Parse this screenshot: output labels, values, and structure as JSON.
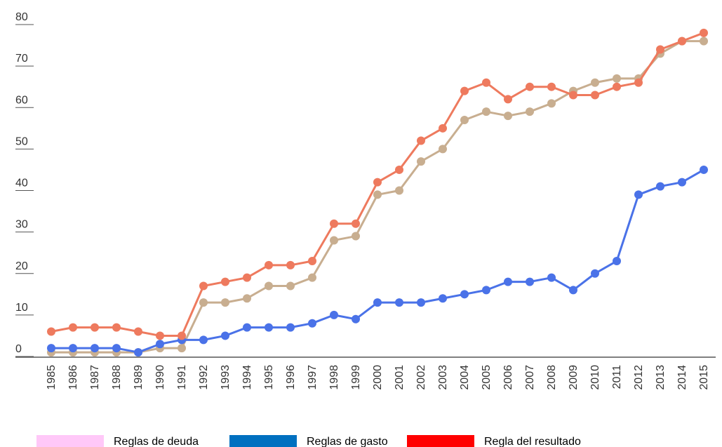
{
  "chart_data": {
    "type": "line",
    "categories": [
      "1985",
      "1986",
      "1987",
      "1988",
      "1989",
      "1990",
      "1991",
      "1992",
      "1993",
      "1994",
      "1995",
      "1996",
      "1997",
      "1998",
      "1999",
      "2000",
      "2001",
      "2002",
      "2003",
      "2004",
      "2005",
      "2006",
      "2007",
      "2008",
      "2009",
      "2010",
      "2011",
      "2012",
      "2013",
      "2014",
      "2015"
    ],
    "series": [
      {
        "name": "Reglas de deuda",
        "color": "#c8ae90",
        "legend_color": "#ffc8f8",
        "values": [
          1,
          1,
          1,
          1,
          1,
          2,
          2,
          13,
          13,
          14,
          17,
          17,
          19,
          28,
          29,
          39,
          40,
          47,
          50,
          57,
          59,
          58,
          59,
          61,
          64,
          66,
          67,
          67,
          73,
          76,
          76
        ]
      },
      {
        "name": "Reglas de gasto",
        "color": "#4a72e8",
        "legend_color": "#0070c0",
        "values": [
          2,
          2,
          2,
          2,
          1,
          3,
          4,
          4,
          5,
          7,
          7,
          7,
          8,
          10,
          9,
          13,
          13,
          13,
          14,
          15,
          16,
          18,
          18,
          19,
          16,
          20,
          23,
          39,
          41,
          42,
          45
        ]
      },
      {
        "name": "Regla del resultado",
        "color": "#ee7a5e",
        "legend_color": "#ff0000",
        "values": [
          6,
          7,
          7,
          7,
          6,
          5,
          5,
          17,
          18,
          19,
          22,
          22,
          23,
          32,
          32,
          42,
          45,
          52,
          55,
          64,
          66,
          62,
          65,
          65,
          63,
          63,
          65,
          66,
          74,
          76,
          78
        ]
      }
    ],
    "ylim": [
      0,
      80
    ],
    "yticks": [
      0,
      10,
      20,
      30,
      40,
      50,
      60,
      70,
      80
    ],
    "grid": false,
    "legend": "bottom"
  }
}
